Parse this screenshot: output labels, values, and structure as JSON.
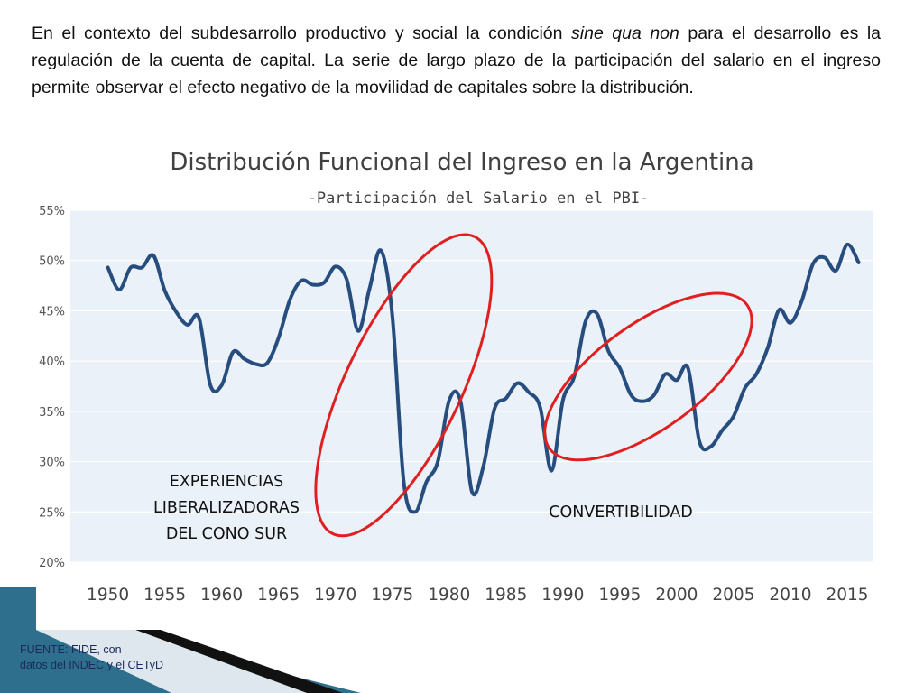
{
  "slide": {
    "paragraph": {
      "before": "En el contexto del subdesarrollo productivo y social la condición ",
      "italic": "sine qua non",
      "after": " para el desarrollo es la regulación de la cuenta de capital. La serie de largo plazo de la participación del salario en el ingreso permite observar el efecto negativo de la movilidad de capitales sobre la distribución."
    },
    "source_line1": "FUENTE: FIDE, con",
    "source_line2": "datos del INDEC y el CETyD"
  },
  "colors": {
    "line": "#264d7e",
    "plot_background": "#eaf1f8",
    "gridline": "#ffffff",
    "ellipse": "#e02020",
    "accent_dark": "#111111",
    "accent_teal": "#2e6f8e"
  },
  "chart_data": {
    "type": "line",
    "title": "Distribución Funcional del Ingreso en la Argentina",
    "subtitle": "-Participación del Salario en el PBI-",
    "xlabel": "",
    "ylabel": "",
    "xlim": [
      1946.7,
      2017.3
    ],
    "ylim": [
      20,
      55
    ],
    "y_ticks": [
      20,
      25,
      30,
      35,
      40,
      45,
      50,
      55
    ],
    "y_tick_labels": [
      "20%",
      "25%",
      "30%",
      "35%",
      "40%",
      "45%",
      "50%",
      "55%"
    ],
    "x_ticks": [
      1950,
      1955,
      1960,
      1965,
      1970,
      1975,
      1980,
      1985,
      1990,
      1995,
      2000,
      2005,
      2010,
      2015
    ],
    "x_tick_labels": [
      "1950",
      "1955",
      "1960",
      "1965",
      "1970",
      "1975",
      "1980",
      "1985",
      "1990",
      "1995",
      "2000",
      "2005",
      "2010",
      "2015"
    ],
    "grid": true,
    "legend": "none",
    "series": [
      {
        "x": [
          1950,
          1951,
          1952,
          1953,
          1954,
          1955,
          1956,
          1957,
          1958,
          1959,
          1960,
          1961,
          1962,
          1963,
          1964,
          1965,
          1966,
          1967,
          1968,
          1969,
          1970,
          1971,
          1972,
          1973,
          1974,
          1975,
          1976,
          1977,
          1978,
          1979,
          1980,
          1981,
          1982,
          1983,
          1984,
          1985,
          1986,
          1987,
          1988,
          1989,
          1990,
          1991,
          1992,
          1993,
          1994,
          1995,
          1996,
          1997,
          1998,
          1999,
          2000,
          2001,
          2002,
          2003,
          2004,
          2005,
          2006,
          2007,
          2008,
          2009,
          2010,
          2011,
          2012,
          2013,
          2014,
          2015,
          2016
        ],
        "values": [
          49.3,
          47.1,
          49.3,
          49.3,
          50.5,
          47.0,
          44.9,
          43.6,
          44.3,
          37.6,
          37.6,
          40.9,
          40.2,
          39.7,
          39.8,
          42.3,
          46.1,
          48.0,
          47.6,
          47.8,
          49.4,
          48.1,
          43.0,
          47.2,
          51.0,
          44.5,
          28.0,
          25.0,
          28.0,
          30.0,
          36.1,
          36.0,
          27.0,
          29.5,
          35.3,
          36.3,
          37.8,
          36.9,
          35.4,
          29.1,
          36.1,
          38.5,
          44.0,
          44.7,
          41.0,
          39.3,
          36.6,
          36.0,
          36.6,
          38.7,
          38.1,
          39.3,
          32.0,
          31.5,
          33.1,
          34.5,
          37.3,
          38.7,
          41.3,
          45.1,
          43.8,
          46.0,
          49.7,
          50.3,
          49.0,
          51.6,
          49.8
        ]
      }
    ],
    "annotations": [
      {
        "text_lines": [
          "EXPERIENCIAS",
          "LIBERALIZADORAS",
          "DEL CONO SUR"
        ],
        "period": [
          1970,
          1982
        ],
        "y_range": [
          23.5,
          51.7
        ]
      },
      {
        "text_lines": [
          "CONVERTIBILIDAD"
        ],
        "period": [
          1991,
          2004
        ],
        "y_range": [
          29.7,
          47.2
        ]
      }
    ]
  }
}
